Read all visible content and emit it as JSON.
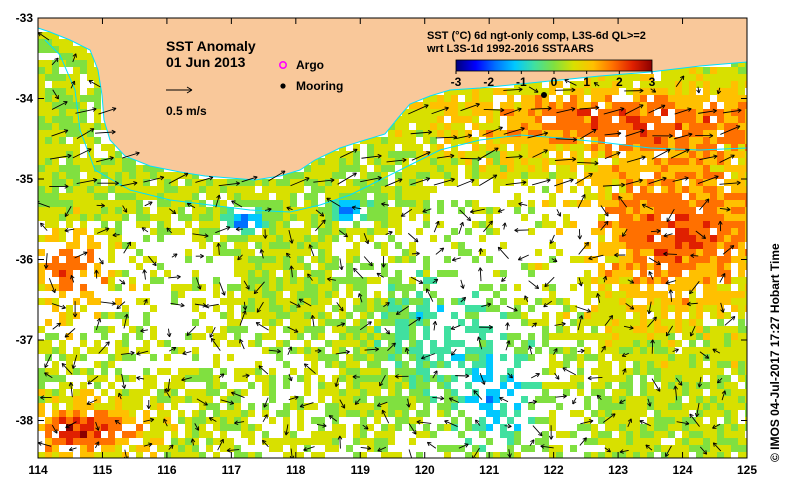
{
  "map": {
    "title": "SST Anomaly",
    "date": "01 Jun 2013",
    "vector_scale_label": "0.5 m/s",
    "legend": {
      "argo_label": "Argo",
      "mooring_label": "Mooring"
    },
    "colorbar": {
      "title_line1": "SST (°C) 6d ngt-only comp, L3S-6d QL>=2",
      "title_line2": "wrt L3S-1d 1992-2016 SSTAARS",
      "ticks": [
        "-3",
        "-2",
        "-1",
        "0",
        "1",
        "2",
        "3"
      ],
      "colors": [
        "#00007a",
        "#0000ff",
        "#0070ff",
        "#00c8ff",
        "#40e0a0",
        "#80e040",
        "#d8e000",
        "#ffc000",
        "#ff7000",
        "#e02000",
        "#8b0000"
      ]
    },
    "x_ticks": [
      "114",
      "115",
      "116",
      "117",
      "118",
      "119",
      "120",
      "121",
      "122",
      "123",
      "124",
      "125"
    ],
    "y_ticks": [
      "-33",
      "-34",
      "-35",
      "-36",
      "-37",
      "-38"
    ],
    "credit": "© IMOS 04-Jul-2017 17:27 Hobart Time",
    "colors": {
      "land": "#f9c89a",
      "coastline_cyan": "#00e0ff",
      "mooring": "#000000",
      "argo": "#ff00ff"
    }
  }
}
